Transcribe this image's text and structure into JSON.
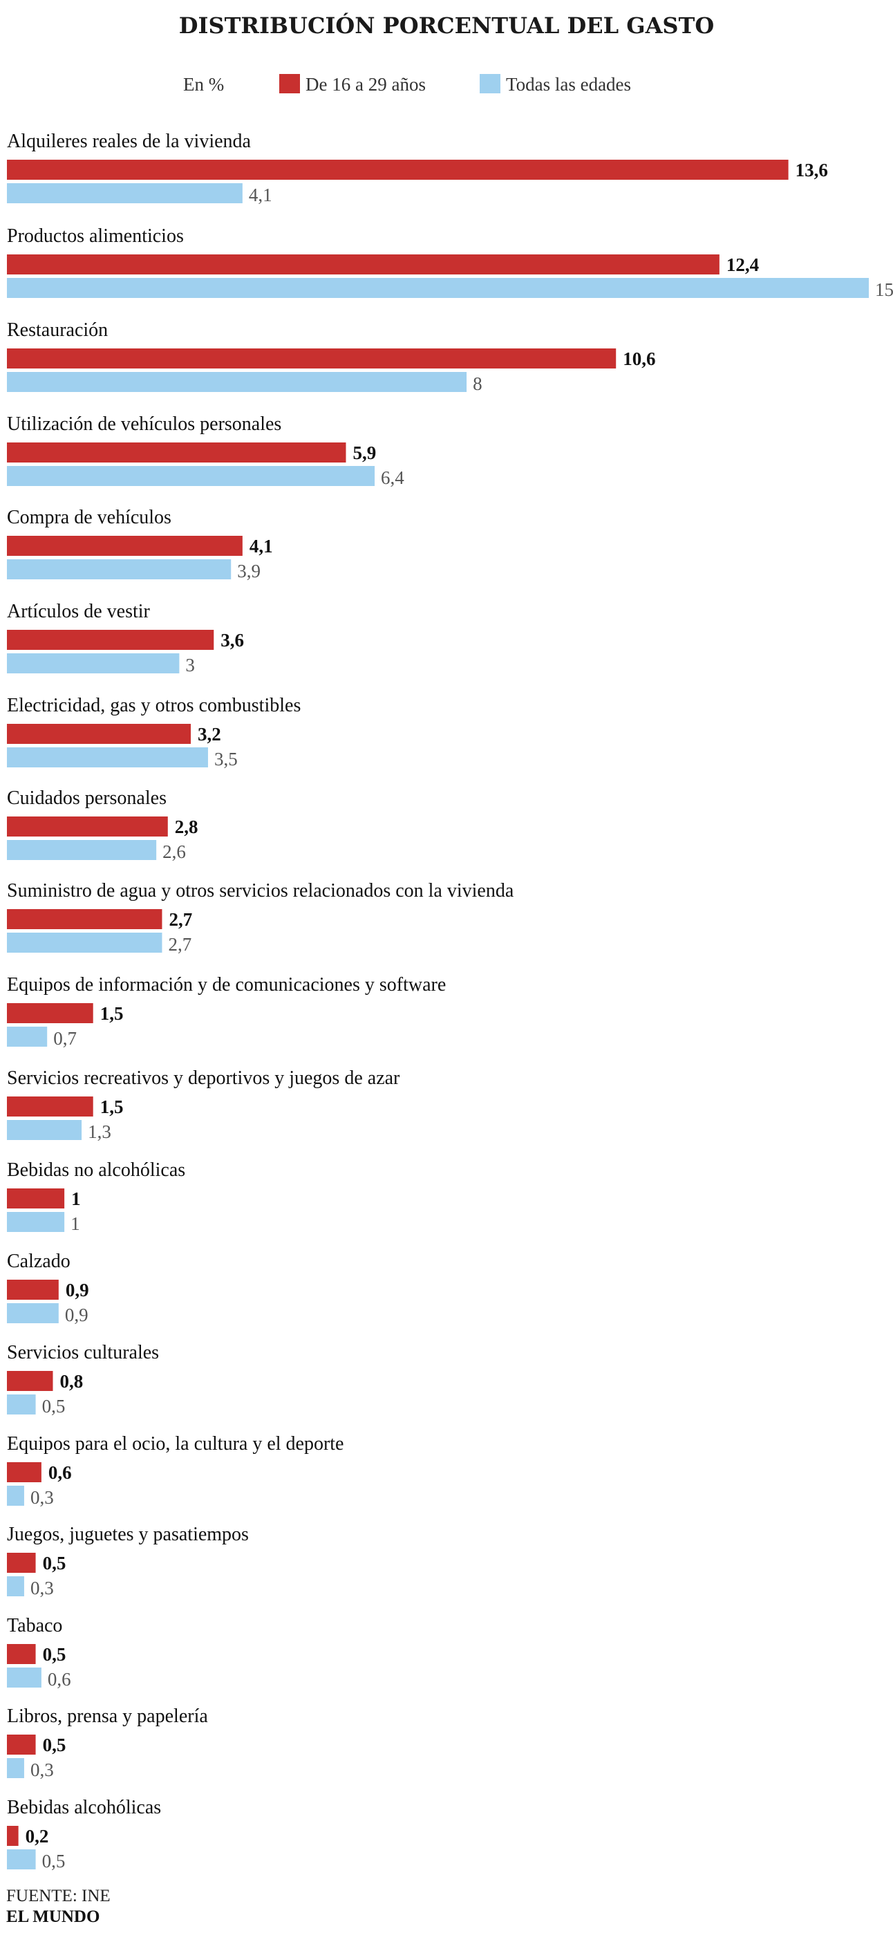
{
  "chart_data": {
    "type": "bar",
    "orientation": "horizontal",
    "title": "DISTRIBUCIÓN PORCENTUAL DEL GASTO",
    "unit_label": "En %",
    "xlim": [
      0,
      15
    ],
    "grid": false,
    "legend_position": "top",
    "categories": [
      "Alquileres reales de la vivienda",
      "Productos alimenticios",
      "Restauración",
      "Utilización de vehículos personales",
      "Compra de vehículos",
      "Artículos de vestir",
      "Electricidad, gas y otros combustibles",
      "Cuidados personales",
      "Suministro de agua y otros servicios relacionados con la vivienda",
      "Equipos de información y de comunicaciones y software",
      "Servicios recreativos y deportivos y juegos de azar",
      "Bebidas no alcohólicas",
      "Calzado",
      "Servicios culturales",
      "Equipos para el ocio, la cultura y el deporte",
      "Juegos, juguetes y pasatiempos",
      "Tabaco",
      "Libros, prensa y papelería",
      "Bebidas alcohólicas"
    ],
    "series": [
      {
        "name": "De 16 a 29 años",
        "color": "#c8302f",
        "values": [
          13.6,
          12.4,
          10.6,
          5.9,
          4.1,
          3.6,
          3.2,
          2.8,
          2.7,
          1.5,
          1.5,
          1,
          0.9,
          0.8,
          0.6,
          0.5,
          0.5,
          0.5,
          0.2
        ],
        "labels": [
          "13,6",
          "12,4",
          "10,6",
          "5,9",
          "4,1",
          "3,6",
          "3,2",
          "2,8",
          "2,7",
          "1,5",
          "1,5",
          "1",
          "0,9",
          "0,8",
          "0,6",
          "0,5",
          "0,5",
          "0,5",
          "0,2"
        ]
      },
      {
        "name": "Todas las edades",
        "color": "#9fd0ef",
        "values": [
          4.1,
          15,
          8,
          6.4,
          3.9,
          3,
          3.5,
          2.6,
          2.7,
          0.7,
          1.3,
          1,
          0.9,
          0.5,
          0.3,
          0.3,
          0.6,
          0.3,
          0.5
        ],
        "labels": [
          "4,1",
          "15",
          "8",
          "6,4",
          "3,9",
          "3",
          "3,5",
          "2,6",
          "2,7",
          "0,7",
          "1,3",
          "1",
          "0,9",
          "0,5",
          "0,3",
          "0,3",
          "0,6",
          "0,3",
          "0,5"
        ]
      }
    ]
  },
  "footer": {
    "source": "FUENTE: INE",
    "brand": "EL MUNDO"
  }
}
